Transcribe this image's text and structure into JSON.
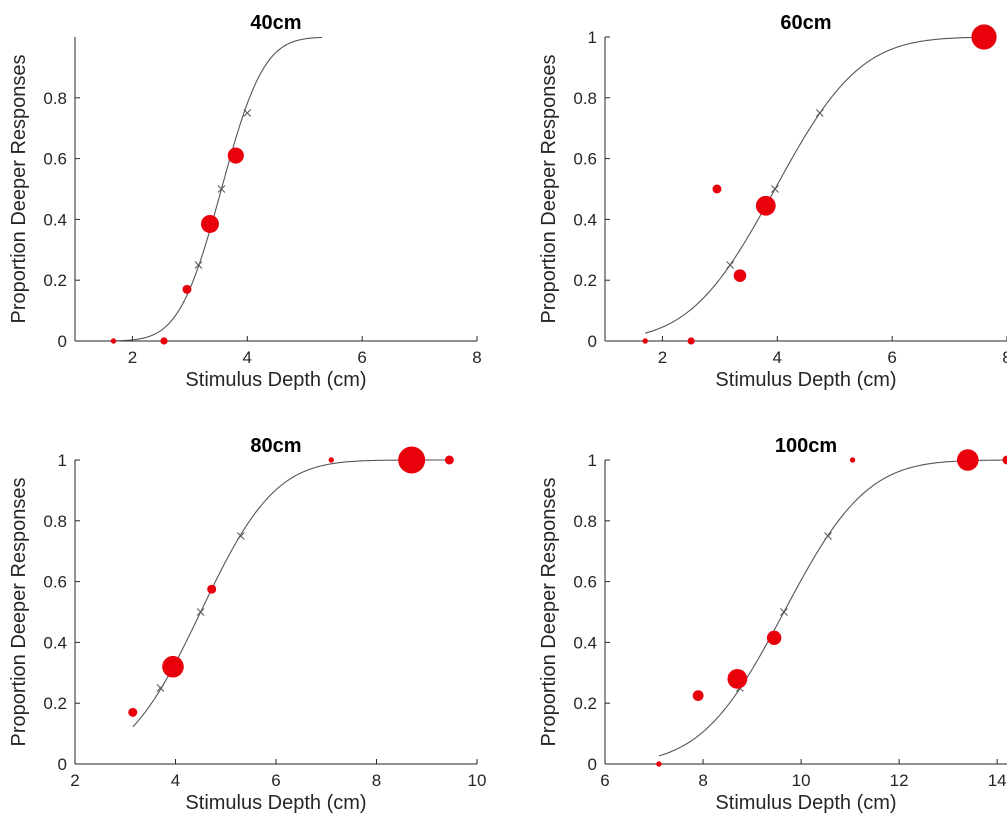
{
  "colors": {
    "axis": "#262626",
    "curve": "#555555",
    "marker": "#e8000b",
    "cross": "#555555"
  },
  "chart_data": [
    {
      "type": "scatter",
      "title": "40cm",
      "xlabel": "Stimulus Depth (cm)",
      "ylabel": "Proportion Deeper Responses",
      "xlim": [
        1,
        8
      ],
      "ylim": [
        0,
        1
      ],
      "xticks": [
        2,
        4,
        6,
        8
      ],
      "yticks": [
        0,
        0.2,
        0.4,
        0.6,
        0.8
      ],
      "ytick_labels": [
        "0",
        "0.2",
        "0.4",
        "0.6",
        "0.8"
      ],
      "grid": false,
      "points": [
        {
          "x": 1.67,
          "y": 0.0,
          "n": 1
        },
        {
          "x": 2.55,
          "y": 0.0,
          "n": 2
        },
        {
          "x": 2.95,
          "y": 0.17,
          "n": 3
        },
        {
          "x": 3.35,
          "y": 0.385,
          "n": 8
        },
        {
          "x": 3.8,
          "y": 0.61,
          "n": 7
        }
      ],
      "fit": {
        "mu": 3.55,
        "sigma": 0.58,
        "x_range": [
          1.7,
          5.3
        ]
      },
      "threshold_marks": [
        {
          "x": 3.15,
          "y": 0.25
        },
        {
          "x": 3.55,
          "y": 0.5
        },
        {
          "x": 4.0,
          "y": 0.75
        }
      ]
    },
    {
      "type": "scatter",
      "title": "60cm",
      "xlabel": "Stimulus Depth (cm)",
      "ylabel": "Proportion Deeper Responses",
      "xlim": [
        1,
        8
      ],
      "ylim": [
        0,
        1
      ],
      "xticks": [
        2,
        4,
        6,
        8
      ],
      "yticks": [
        0,
        0.2,
        0.4,
        0.6,
        0.8,
        1
      ],
      "ytick_labels": [
        "0",
        "0.2",
        "0.4",
        "0.6",
        "0.8",
        "1"
      ],
      "grid": false,
      "points": [
        {
          "x": 1.7,
          "y": 0.0,
          "n": 1
        },
        {
          "x": 2.5,
          "y": 0.0,
          "n": 2
        },
        {
          "x": 2.95,
          "y": 0.5,
          "n": 3
        },
        {
          "x": 3.35,
          "y": 0.215,
          "n": 5
        },
        {
          "x": 3.8,
          "y": 0.445,
          "n": 9
        },
        {
          "x": 7.6,
          "y": 1.0,
          "n": 12
        }
      ],
      "fit": {
        "mu": 3.96,
        "sigma": 1.16,
        "x_range": [
          1.7,
          7.6
        ]
      },
      "threshold_marks": [
        {
          "x": 3.18,
          "y": 0.25
        },
        {
          "x": 3.96,
          "y": 0.5
        },
        {
          "x": 4.74,
          "y": 0.75
        }
      ]
    },
    {
      "type": "scatter",
      "title": "80cm",
      "xlabel": "Stimulus Depth (cm)",
      "ylabel": "Proportion Deeper Responses",
      "xlim": [
        2,
        10
      ],
      "ylim": [
        0,
        1
      ],
      "xticks": [
        2,
        4,
        6,
        8,
        10
      ],
      "yticks": [
        0,
        0.2,
        0.4,
        0.6,
        0.8,
        1
      ],
      "ytick_labels": [
        "0",
        "0.2",
        "0.4",
        "0.6",
        "0.8",
        "1"
      ],
      "grid": false,
      "points": [
        {
          "x": 3.15,
          "y": 0.17,
          "n": 3
        },
        {
          "x": 3.95,
          "y": 0.32,
          "n": 10
        },
        {
          "x": 4.72,
          "y": 0.575,
          "n": 3
        },
        {
          "x": 7.1,
          "y": 1.0,
          "n": 1
        },
        {
          "x": 8.7,
          "y": 1.0,
          "n": 13
        },
        {
          "x": 9.45,
          "y": 1.0,
          "n": 3
        }
      ],
      "fit": {
        "mu": 4.5,
        "sigma": 1.16,
        "x_range": [
          3.15,
          9.45
        ]
      },
      "threshold_marks": [
        {
          "x": 3.7,
          "y": 0.25
        },
        {
          "x": 4.5,
          "y": 0.5
        },
        {
          "x": 5.3,
          "y": 0.75
        }
      ]
    },
    {
      "type": "scatter",
      "title": "100cm",
      "xlabel": "Stimulus Depth (cm)",
      "ylabel": "Proportion Deeper Responses",
      "xlim": [
        6,
        14.2
      ],
      "ylim": [
        0,
        1
      ],
      "xticks": [
        6,
        8,
        10,
        12,
        14
      ],
      "yticks": [
        0,
        0.2,
        0.4,
        0.6,
        0.8,
        1
      ],
      "ytick_labels": [
        "0",
        "0.2",
        "0.4",
        "0.6",
        "0.8",
        "1"
      ],
      "grid": false,
      "points": [
        {
          "x": 7.1,
          "y": 0.0,
          "n": 1
        },
        {
          "x": 7.9,
          "y": 0.225,
          "n": 4
        },
        {
          "x": 8.7,
          "y": 0.28,
          "n": 9
        },
        {
          "x": 9.45,
          "y": 0.415,
          "n": 6
        },
        {
          "x": 11.05,
          "y": 1.0,
          "n": 1
        },
        {
          "x": 13.4,
          "y": 1.0,
          "n": 10
        },
        {
          "x": 14.2,
          "y": 1.0,
          "n": 3
        }
      ],
      "fit": {
        "mu": 9.65,
        "sigma": 1.32,
        "x_range": [
          7.1,
          14.2
        ]
      },
      "threshold_marks": [
        {
          "x": 8.75,
          "y": 0.25
        },
        {
          "x": 9.65,
          "y": 0.5
        },
        {
          "x": 10.55,
          "y": 0.75
        }
      ]
    }
  ]
}
